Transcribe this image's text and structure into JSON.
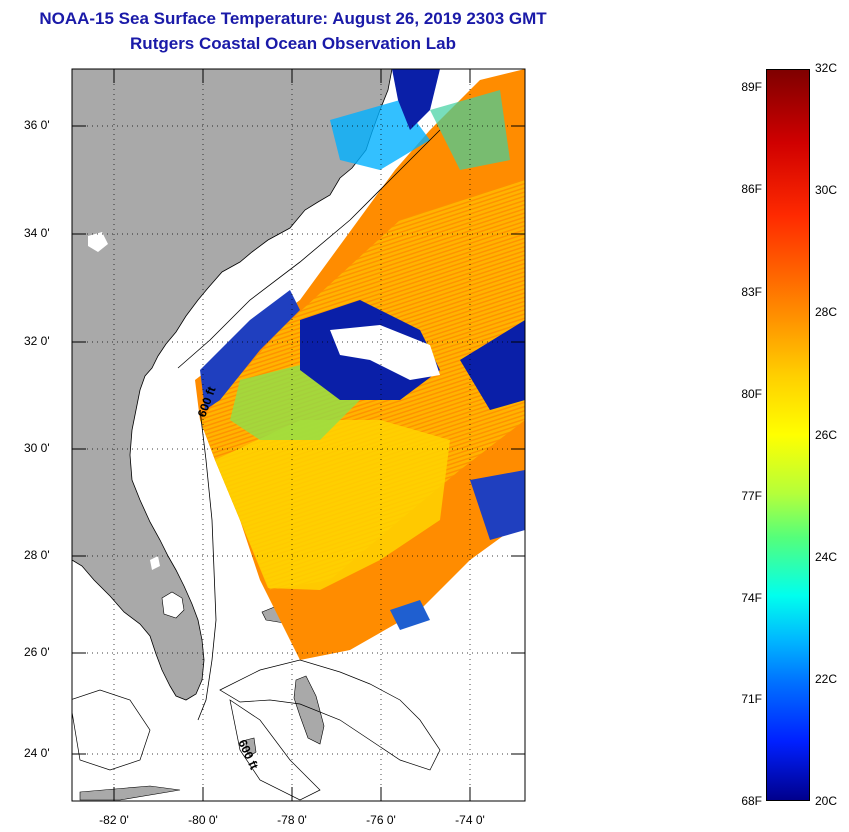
{
  "header": {
    "title": "NOAA-15 Sea Surface Temperature:  August 26, 2019 2303 GMT",
    "subtitle": "Rutgers Coastal Ocean Observation Lab"
  },
  "map": {
    "lat_ticks": [
      "36 0'",
      "34 0'",
      "32 0'",
      "30 0'",
      "28 0'",
      "26 0'",
      "24 0'"
    ],
    "lon_ticks": [
      "-82 0'",
      "-80 0'",
      "-78 0'",
      "-76 0'",
      "-74 0'"
    ],
    "contour_labels": [
      "600 ft",
      "600 ft"
    ],
    "land_color": "#a9a9a9",
    "nodata_color": "#ffffff"
  },
  "colorbar": {
    "fahrenheit_labels": [
      "89F",
      "86F",
      "83F",
      "80F",
      "77F",
      "74F",
      "71F",
      "68F"
    ],
    "celsius_labels": [
      "32C",
      "30C",
      "28C",
      "26C",
      "24C",
      "22C",
      "20C"
    ],
    "min_c": 20,
    "max_c": 32
  }
}
